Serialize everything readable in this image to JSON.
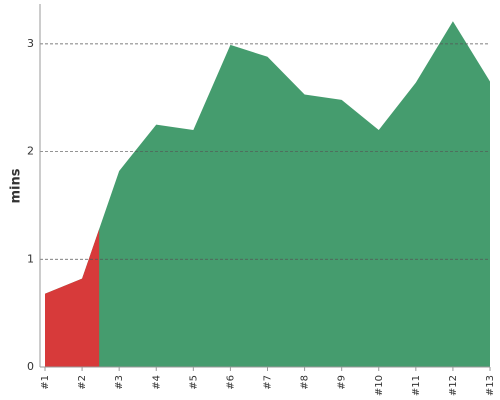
{
  "chart_data": {
    "type": "area",
    "y_label": "mins",
    "categories": [
      "#1",
      "#2",
      "#3",
      "#4",
      "#5",
      "#6",
      "#7",
      "#8",
      "#9",
      "#10",
      "#11",
      "#12",
      "#13"
    ],
    "values": [
      0.68,
      0.82,
      1.82,
      2.25,
      2.2,
      2.99,
      2.88,
      2.53,
      2.48,
      2.2,
      2.64,
      3.21,
      2.65
    ],
    "color": "#459c6e",
    "threshold": 1.28,
    "below_color": "#d73a3a",
    "ylim": [
      0,
      3.37
    ],
    "yticks": [
      0,
      1,
      2,
      3
    ],
    "grid": true
  }
}
